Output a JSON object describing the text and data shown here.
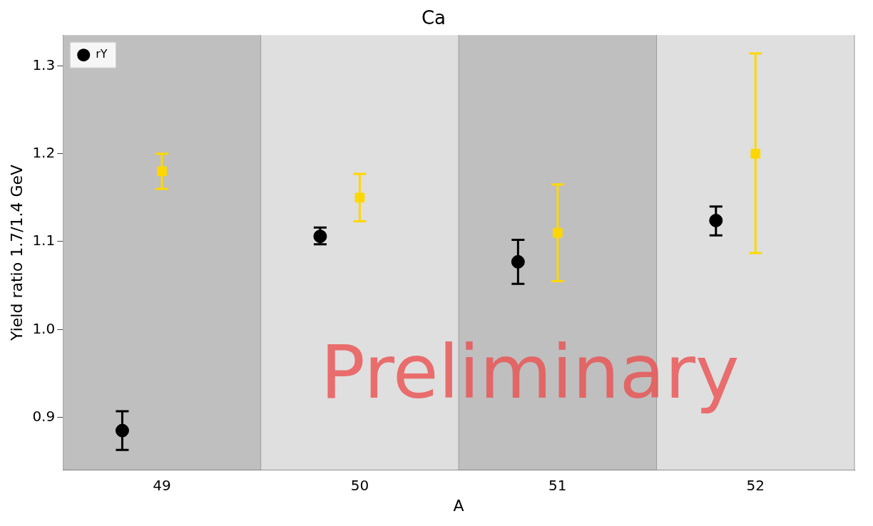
{
  "chart_data": {
    "type": "scatter",
    "title": "Ca",
    "xlabel": "A",
    "ylabel": "Yield ratio 1.7/1.4 GeV",
    "xlim": [
      48.5,
      52.5
    ],
    "xticks": [
      49,
      50,
      51,
      52
    ],
    "ylim": [
      0.84,
      1.335
    ],
    "yticks": [
      0.9,
      {
        "value": 1,
        "label": "1.0"
      },
      1.1,
      1.2,
      1.3
    ],
    "series": [
      {
        "name": "rY",
        "color": "#000000",
        "marker": "circle",
        "x": [
          48.8,
          49.8,
          50.8,
          51.8
        ],
        "values": [
          0.885,
          1.106,
          1.077,
          1.124
        ],
        "errors": [
          [
            0.863,
            0.907
          ],
          [
            1.097,
            1.116
          ],
          [
            1.052,
            1.102
          ],
          [
            1.107,
            1.14
          ]
        ]
      },
      {
        "color": "#ffd700",
        "marker": "square",
        "x": [
          49,
          50,
          51,
          52
        ],
        "values": [
          1.18,
          1.15,
          1.11,
          1.2
        ],
        "errors": [
          [
            1.16,
            1.2
          ],
          [
            1.123,
            1.177
          ],
          [
            1.055,
            1.165
          ],
          [
            1.087,
            1.314
          ]
        ]
      }
    ],
    "bands": [
      {
        "axis": "x",
        "from": 48.5,
        "to": 49.5,
        "color": "#bfbfbf"
      },
      {
        "axis": "x",
        "from": 49.5,
        "to": 50.5,
        "color": "#dfdfdf"
      },
      {
        "axis": "x",
        "from": 50.5,
        "to": 51.5,
        "color": "#bfbfbf"
      },
      {
        "axis": "x",
        "from": 51.5,
        "to": 52.5,
        "color": "#dfdfdf"
      }
    ],
    "annotations": [
      "Preliminary"
    ],
    "legend": "top left",
    "grid": false
  }
}
